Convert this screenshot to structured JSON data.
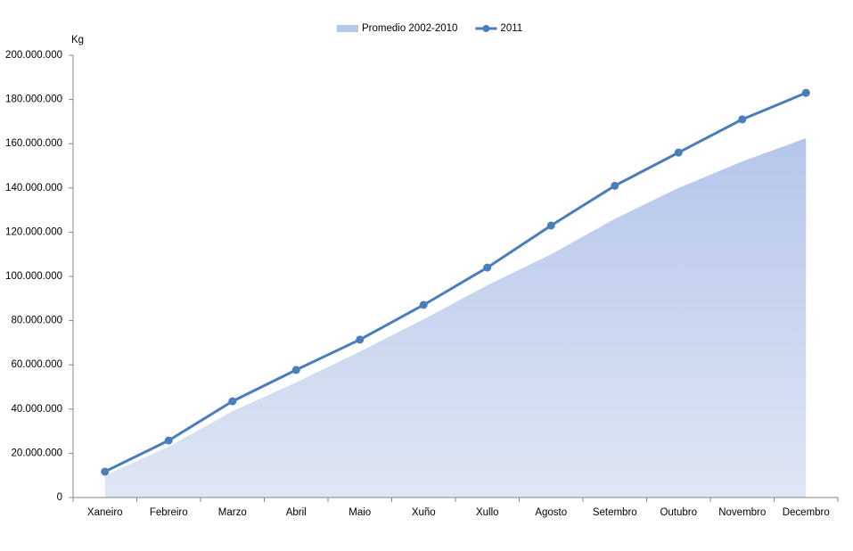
{
  "chart_data": {
    "type": "area-line",
    "y_label": "Kg",
    "categories": [
      "Xaneiro",
      "Febreiro",
      "Marzo",
      "Abril",
      "Maio",
      "Xuño",
      "Xullo",
      "Agosto",
      "Setembro",
      "Outubro",
      "Novembro",
      "Decembro"
    ],
    "series": [
      {
        "name": "Promedio 2002-2010",
        "type": "area",
        "color": "#b4c6ea",
        "values": [
          10000000,
          23000000,
          39000000,
          52000000,
          66000000,
          80600000,
          96000000,
          110000000,
          126000000,
          140000000,
          152000000,
          162500000
        ]
      },
      {
        "name": "2011",
        "type": "line",
        "color": "#4a7ebb",
        "values": [
          11700000,
          25800000,
          43500000,
          57700000,
          71400000,
          87100000,
          104000000,
          123000000,
          141000000,
          156000000,
          171000000,
          183000000
        ]
      }
    ],
    "ylim": [
      0,
      200000000
    ],
    "yticks": [
      0,
      {
        "value": 20000000,
        "label": "20.000.000"
      },
      {
        "value": 40000000,
        "label": "40.000.000"
      },
      {
        "value": 60000000,
        "label": "60.000.000"
      },
      {
        "value": 80000000,
        "label": "80.000.000"
      },
      {
        "value": 100000000,
        "label": "100.000.000"
      },
      {
        "value": 120000000,
        "label": "120.000.000"
      },
      {
        "value": 140000000,
        "label": "140.000.000"
      },
      {
        "value": 160000000,
        "label": "160.000.000"
      },
      {
        "value": 180000000,
        "label": "180.000.000"
      },
      {
        "value": 200000000,
        "label": "200.000.000"
      }
    ],
    "legend_position": "top"
  }
}
